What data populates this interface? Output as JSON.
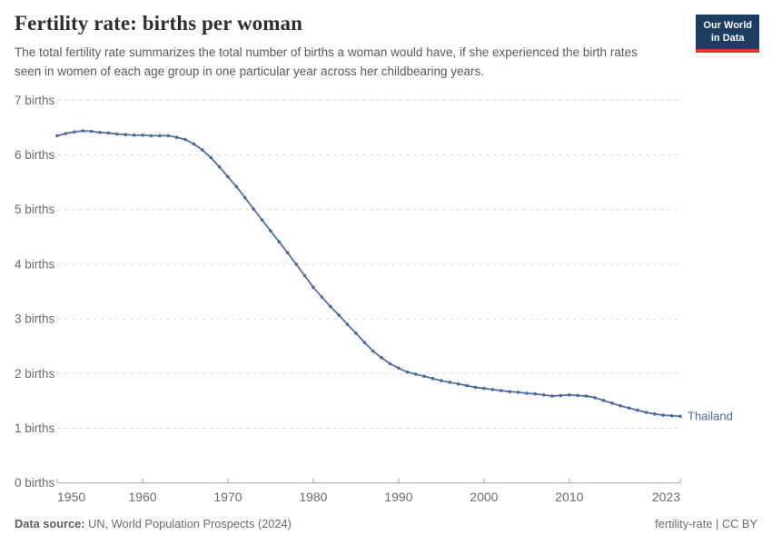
{
  "header": {
    "title": "Fertility rate: births per woman",
    "subtitle": "The total fertility rate summarizes the total number of births a woman would have, if she experienced the birth rates seen in women of each age group in one particular year across her childbearing years.",
    "logo": {
      "line1": "Our World",
      "line2": "in Data"
    }
  },
  "footer": {
    "source_label": "Data source:",
    "source_value": " UN, World Population Prospects (2024)",
    "license": "fertility-rate | CC BY"
  },
  "colors": {
    "line": "#4c6a9c",
    "entity_label": "#4c6a9c",
    "grid": "#dedede",
    "axis": "#a3a3a3",
    "tick_text": "#6b6b6b",
    "logo_bg": "#1d3d63",
    "logo_bar": "#d93a2e"
  },
  "chart_data": {
    "type": "line",
    "title": "Fertility rate: births per woman",
    "entity": "Thailand",
    "xlabel": "",
    "ylabel": "births per woman",
    "ylim": [
      0,
      7
    ],
    "yticks": [
      0,
      1,
      2,
      3,
      4,
      5,
      6,
      7
    ],
    "ytick_labels": [
      "0 births",
      "1 births",
      "2 births",
      "3 births",
      "4 births",
      "5 births",
      "6 births",
      "7 births"
    ],
    "xticks": [
      1950,
      1960,
      1970,
      1980,
      1990,
      2000,
      2010,
      2023
    ],
    "grid": "horizontal-dashed",
    "legend_position": "end-of-line-label",
    "x": [
      1950,
      1951,
      1952,
      1953,
      1954,
      1955,
      1956,
      1957,
      1958,
      1959,
      1960,
      1961,
      1962,
      1963,
      1964,
      1965,
      1966,
      1967,
      1968,
      1969,
      1970,
      1971,
      1972,
      1973,
      1974,
      1975,
      1976,
      1977,
      1978,
      1979,
      1980,
      1981,
      1982,
      1983,
      1984,
      1985,
      1986,
      1987,
      1988,
      1989,
      1990,
      1991,
      1992,
      1993,
      1994,
      1995,
      1996,
      1997,
      1998,
      1999,
      2000,
      2001,
      2002,
      2003,
      2004,
      2005,
      2006,
      2007,
      2008,
      2009,
      2010,
      2011,
      2012,
      2013,
      2014,
      2015,
      2016,
      2017,
      2018,
      2019,
      2020,
      2021,
      2022,
      2023
    ],
    "values": [
      6.35,
      6.39,
      6.42,
      6.44,
      6.43,
      6.41,
      6.4,
      6.38,
      6.37,
      6.36,
      6.36,
      6.35,
      6.35,
      6.35,
      6.32,
      6.28,
      6.2,
      6.09,
      5.95,
      5.78,
      5.6,
      5.42,
      5.22,
      5.01,
      4.81,
      4.61,
      4.41,
      4.21,
      4.0,
      3.79,
      3.58,
      3.4,
      3.23,
      3.07,
      2.9,
      2.74,
      2.57,
      2.41,
      2.29,
      2.18,
      2.1,
      2.03,
      1.99,
      1.95,
      1.91,
      1.87,
      1.84,
      1.81,
      1.78,
      1.75,
      1.73,
      1.71,
      1.69,
      1.67,
      1.66,
      1.64,
      1.63,
      1.61,
      1.59,
      1.6,
      1.61,
      1.6,
      1.59,
      1.56,
      1.51,
      1.46,
      1.41,
      1.37,
      1.33,
      1.29,
      1.26,
      1.24,
      1.23,
      1.22
    ]
  }
}
